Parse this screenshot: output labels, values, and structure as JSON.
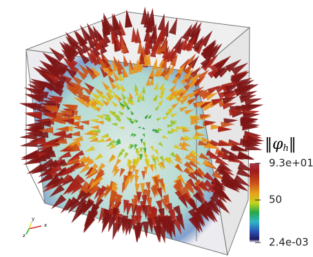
{
  "colorbar": {
    "title": {
      "open": "‖",
      "symbol": "φ",
      "subscript": "h",
      "close": "‖"
    },
    "range": [
      0.0024,
      93
    ],
    "ticks": [
      {
        "value": 93,
        "label": "9.3e+01"
      },
      50,
      {
        "value": 0.0024,
        "label": "2.4e-03"
      }
    ]
  },
  "axes": {
    "x": "x",
    "y": "y",
    "z": "z"
  }
}
